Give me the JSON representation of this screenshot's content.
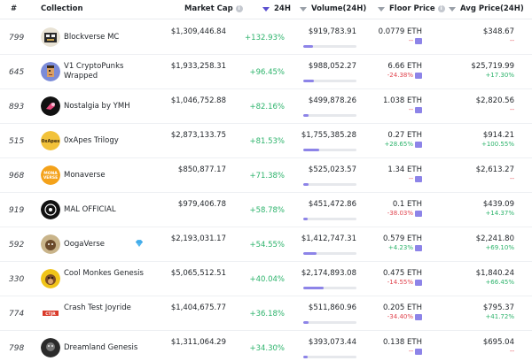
{
  "header": {
    "rank": "#",
    "collection": "Collection",
    "market_cap": "Market Cap",
    "change_24h": "24H",
    "volume": "Volume(24H)",
    "floor": "Floor Price",
    "avg": "Avg Price(24H)"
  },
  "colors": {
    "positive": "#2cb36b",
    "negative": "#e0454f",
    "accent": "#5a4fcf"
  },
  "rows": [
    {
      "rank": "799",
      "name": "Blockverse MC",
      "icon": "blockverse-avatar",
      "market_cap": "$1,309,446.84",
      "change": "+132.93%",
      "volume": "$919,783.91",
      "volume_share": 0.18,
      "floor": "0.0779 ETH",
      "floor_change": "--",
      "avg": "$348.67",
      "avg_change": "--"
    },
    {
      "rank": "645",
      "name": "V1 CryptoPunks Wrapped",
      "icon": "punk-avatar",
      "market_cap": "$1,933,258.31",
      "change": "+96.45%",
      "volume": "$988,052.27",
      "volume_share": 0.2,
      "floor": "6.66 ETH",
      "floor_change": "-24.38%",
      "avg": "$25,719.99",
      "avg_change": "+17.30%"
    },
    {
      "rank": "893",
      "name": "Nostalgia by YMH",
      "icon": "nostalgia-avatar",
      "market_cap": "$1,046,752.88",
      "change": "+82.16%",
      "volume": "$499,878.26",
      "volume_share": 0.1,
      "floor": "1.038 ETH",
      "floor_change": "--",
      "avg": "$2,820.56",
      "avg_change": "--"
    },
    {
      "rank": "515",
      "name": "0xApes Trilogy",
      "icon": "0xapes-avatar",
      "market_cap": "$2,873,133.75",
      "change": "+81.53%",
      "volume": "$1,755,385.28",
      "volume_share": 0.3,
      "floor": "0.27 ETH",
      "floor_change": "+28.65%",
      "avg": "$914.21",
      "avg_change": "+100.55%"
    },
    {
      "rank": "968",
      "name": "Monaverse",
      "icon": "monaverse-avatar",
      "market_cap": "$850,877.17",
      "change": "+71.38%",
      "volume": "$525,023.57",
      "volume_share": 0.1,
      "floor": "1.34 ETH",
      "floor_change": "--",
      "avg": "$2,613.27",
      "avg_change": "--"
    },
    {
      "rank": "919",
      "name": "MAL OFFICIAL",
      "icon": "mal-avatar",
      "market_cap": "$979,406.78",
      "change": "+58.78%",
      "volume": "$451,472.86",
      "volume_share": 0.09,
      "floor": "0.1 ETH",
      "floor_change": "-38.03%",
      "avg": "$439.09",
      "avg_change": "+14.37%"
    },
    {
      "rank": "592",
      "name": "OogaVerse",
      "icon": "oogaverse-avatar",
      "verified": true,
      "market_cap": "$2,193,031.17",
      "change": "+54.55%",
      "volume": "$1,412,747.31",
      "volume_share": 0.25,
      "floor": "0.579 ETH",
      "floor_change": "+4.23%",
      "avg": "$2,241.80",
      "avg_change": "+69.10%"
    },
    {
      "rank": "330",
      "name": "Cool Monkes Genesis",
      "icon": "monke-avatar",
      "market_cap": "$5,065,512.51",
      "change": "+40.04%",
      "volume": "$2,174,893.08",
      "volume_share": 0.38,
      "floor": "0.475 ETH",
      "floor_change": "-14.55%",
      "avg": "$1,840.24",
      "avg_change": "+66.45%"
    },
    {
      "rank": "774",
      "name": "Crash Test Joyride",
      "icon": "ctj-avatar",
      "market_cap": "$1,404,675.77",
      "change": "+36.18%",
      "volume": "$511,860.96",
      "volume_share": 0.1,
      "floor": "0.205 ETH",
      "floor_change": "-34.40%",
      "avg": "$795.37",
      "avg_change": "+41.72%"
    },
    {
      "rank": "798",
      "name": "Dreamland Genesis",
      "icon": "dreamland-avatar",
      "market_cap": "$1,311,064.29",
      "change": "+34.30%",
      "volume": "$393,073.44",
      "volume_share": 0.08,
      "floor": "0.138 ETH",
      "floor_change": "--",
      "avg": "$695.04",
      "avg_change": "--"
    }
  ]
}
